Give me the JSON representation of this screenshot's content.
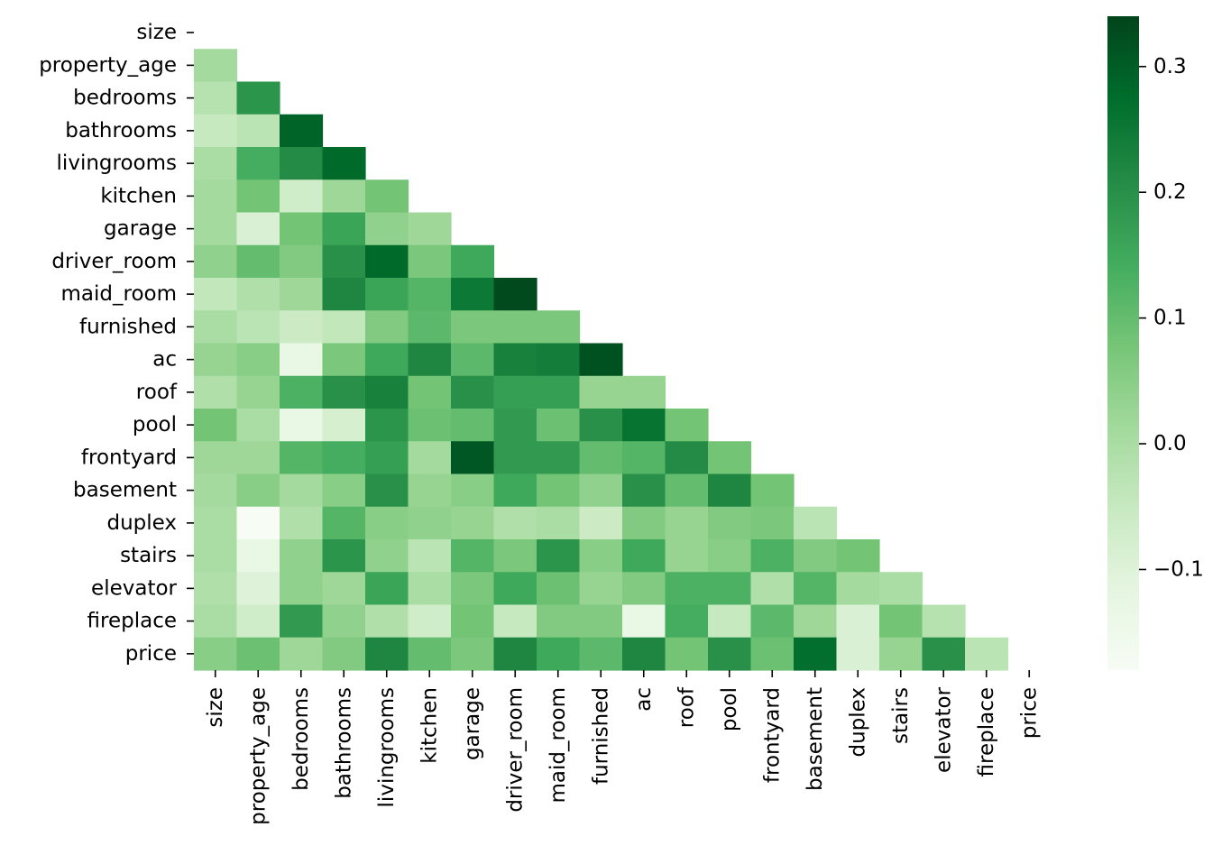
{
  "chart_data": {
    "type": "heatmap",
    "title": "",
    "xlabel": "",
    "ylabel": "",
    "mask": "upper-triangle-including-diagonal",
    "variables": [
      "size",
      "property_age",
      "bedrooms",
      "bathrooms",
      "livingrooms",
      "kitchen",
      "garage",
      "driver_room",
      "maid_room",
      "furnished",
      "ac",
      "roof",
      "pool",
      "frontyard",
      "basement",
      "duplex",
      "stairs",
      "elevator",
      "fireplace",
      "price"
    ],
    "matrix": [
      [],
      [
        0.01
      ],
      [
        -0.02,
        0.19
      ],
      [
        -0.05,
        -0.03,
        0.29
      ],
      [
        -0.0,
        0.14,
        0.21,
        0.28
      ],
      [
        0.01,
        0.08,
        -0.07,
        0.02,
        0.08
      ],
      [
        0.01,
        -0.09,
        0.08,
        0.16,
        0.04,
        0.02
      ],
      [
        0.04,
        0.1,
        0.06,
        0.2,
        0.28,
        0.07,
        0.15
      ],
      [
        -0.04,
        -0.01,
        0.02,
        0.22,
        0.16,
        0.12,
        0.25,
        0.33
      ],
      [
        0.0,
        -0.03,
        -0.06,
        -0.04,
        0.06,
        0.11,
        0.07,
        0.07,
        0.07
      ],
      [
        0.03,
        0.05,
        -0.13,
        0.07,
        0.15,
        0.22,
        0.11,
        0.23,
        0.24,
        0.32
      ],
      [
        -0.01,
        0.03,
        0.13,
        0.2,
        0.23,
        0.08,
        0.2,
        0.17,
        0.17,
        0.03,
        0.03
      ],
      [
        0.08,
        0.0,
        -0.13,
        -0.08,
        0.19,
        0.09,
        0.1,
        0.18,
        0.09,
        0.2,
        0.26,
        0.08
      ],
      [
        0.02,
        0.02,
        0.12,
        0.14,
        0.17,
        0.01,
        0.31,
        0.18,
        0.18,
        0.1,
        0.12,
        0.21,
        0.08
      ],
      [
        0.01,
        0.05,
        0.01,
        0.05,
        0.2,
        0.03,
        0.05,
        0.15,
        0.08,
        0.04,
        0.2,
        0.1,
        0.22,
        0.08
      ],
      [
        0.0,
        -0.18,
        -0.01,
        0.12,
        0.05,
        0.04,
        0.03,
        -0.01,
        -0.0,
        -0.06,
        0.06,
        0.03,
        0.06,
        0.07,
        -0.03
      ],
      [
        0.0,
        -0.13,
        0.04,
        0.19,
        0.04,
        -0.03,
        0.12,
        0.07,
        0.19,
        0.05,
        0.15,
        0.03,
        0.05,
        0.13,
        0.06,
        0.08
      ],
      [
        -0.01,
        -0.1,
        0.04,
        0.02,
        0.16,
        -0.0,
        0.07,
        0.15,
        0.09,
        0.03,
        0.06,
        0.13,
        0.13,
        -0.01,
        0.12,
        0.01,
        -0.0
      ],
      [
        0.0,
        -0.07,
        0.18,
        0.04,
        -0.01,
        -0.07,
        0.08,
        -0.05,
        0.06,
        0.06,
        -0.13,
        0.14,
        -0.05,
        0.11,
        0.02,
        -0.09,
        0.08,
        -0.02
      ],
      [
        0.05,
        0.09,
        0.02,
        0.06,
        0.22,
        0.1,
        0.07,
        0.22,
        0.15,
        0.11,
        0.22,
        0.08,
        0.2,
        0.09,
        0.27,
        -0.09,
        0.03,
        0.2,
        -0.03
      ]
    ],
    "colormap": "Greens",
    "colorbar": {
      "min": -0.18,
      "max": 0.34,
      "ticks": [
        -0.1,
        0.0,
        0.1,
        0.2,
        0.3
      ],
      "tick_labels": [
        "−0.1",
        "0.0",
        "0.1",
        "0.2",
        "0.3"
      ]
    },
    "grid": false,
    "legend": "colorbar-right"
  }
}
